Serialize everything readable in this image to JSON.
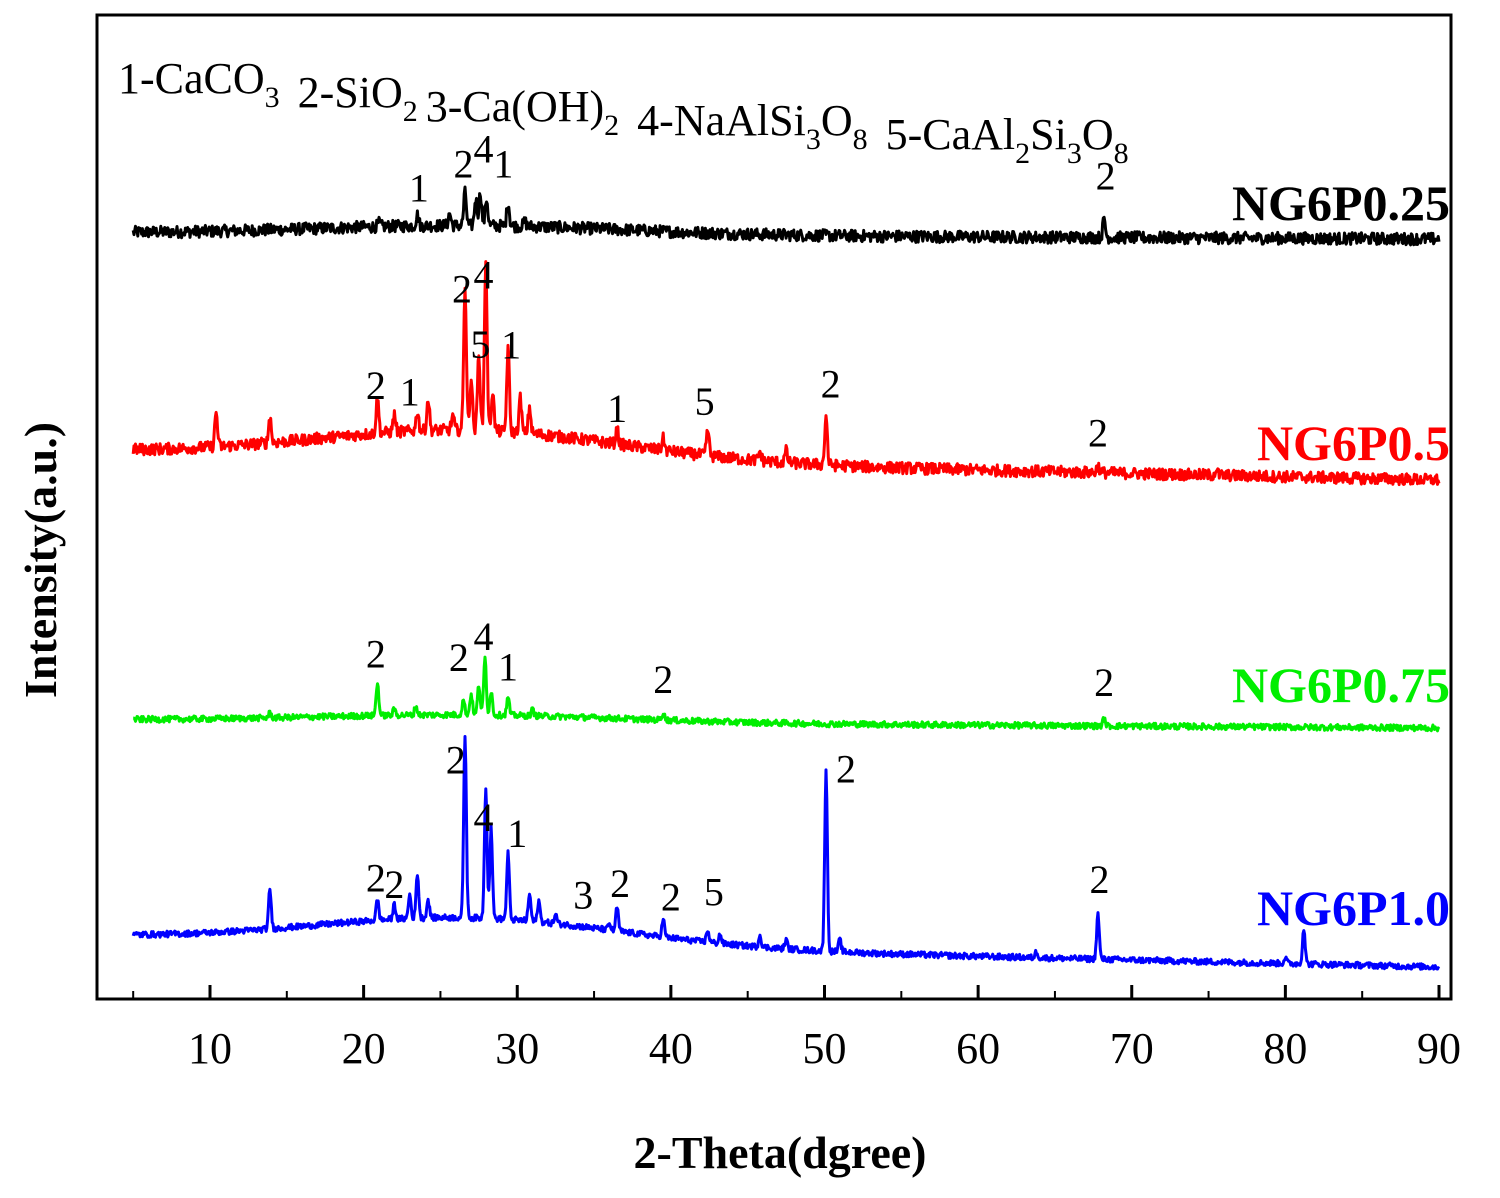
{
  "chart_data": {
    "type": "line",
    "title": "",
    "xlabel": "2-Theta(dgree)",
    "ylabel": "Intensity(a.u.)",
    "xlim": [
      5,
      90
    ],
    "x_ticks": [
      10,
      20,
      30,
      40,
      50,
      60,
      70,
      80,
      90
    ],
    "y_ticks_shown": false,
    "grid": false,
    "legend_items": [
      {
        "text": "1-CaCO",
        "sub": "3"
      },
      {
        "text": "2-SiO",
        "sub": "2"
      },
      {
        "text": "3-Ca(OH)",
        "sub": "2"
      },
      {
        "text": "4-NaAlSi",
        "sub": "3",
        "text2": "O",
        "sub2": "8"
      },
      {
        "text": "5-CaAl",
        "sub": "2",
        "text2": "Si",
        "sub2": "3",
        "text3": "O",
        "sub3": "8"
      }
    ],
    "series": [
      {
        "name": "NG6P0.25",
        "color": "#000000",
        "baseline": [
          0.15,
          0.1
        ],
        "peaks": [
          [
            21.0,
            0.06
          ],
          [
            23.5,
            0.18
          ],
          [
            25.6,
            0.2
          ],
          [
            26.6,
            0.55
          ],
          [
            27.3,
            0.45
          ],
          [
            27.6,
            0.55
          ],
          [
            28.0,
            0.45
          ],
          [
            29.4,
            0.4
          ],
          [
            30.5,
            0.08
          ],
          [
            68.2,
            0.3
          ]
        ],
        "labels": [
          {
            "text": "1",
            "x": 23.6,
            "y": 0.55
          },
          {
            "text": "2",
            "x": 26.5,
            "y": 0.95
          },
          {
            "text": "4",
            "x": 27.8,
            "y": 1.2
          },
          {
            "text": "1",
            "x": 29.1,
            "y": 0.95
          },
          {
            "text": "2",
            "x": 68.3,
            "y": 0.8
          }
        ]
      },
      {
        "name": "NG6P0.5",
        "color": "#ff0000",
        "baseline": [
          0.5,
          0.1
        ],
        "peaks": [
          [
            10.4,
            0.6
          ],
          [
            13.9,
            0.45
          ],
          [
            20.9,
            0.6
          ],
          [
            22.0,
            0.3
          ],
          [
            23.5,
            0.35
          ],
          [
            24.2,
            0.55
          ],
          [
            25.8,
            0.25
          ],
          [
            26.6,
            2.5
          ],
          [
            27.0,
            0.9
          ],
          [
            27.5,
            1.35
          ],
          [
            27.95,
            2.95
          ],
          [
            28.4,
            0.7
          ],
          [
            29.4,
            1.45
          ],
          [
            30.2,
            0.6
          ],
          [
            30.8,
            0.45
          ],
          [
            36.5,
            0.25
          ],
          [
            39.5,
            0.2
          ],
          [
            42.4,
            0.45
          ],
          [
            45.8,
            0.15
          ],
          [
            47.5,
            0.2
          ],
          [
            50.1,
            0.85
          ],
          [
            67.8,
            0.12
          ],
          [
            75.5,
            0.1
          ]
        ],
        "labels": [
          {
            "text": "2",
            "x": 20.8,
            "y": 1.0
          },
          {
            "text": "1",
            "x": 23.0,
            "y": 0.9
          },
          {
            "text": "2",
            "x": 26.4,
            "y": 2.7
          },
          {
            "text": "4",
            "x": 27.8,
            "y": 2.95
          },
          {
            "text": "5",
            "x": 27.6,
            "y": 1.75
          },
          {
            "text": "1",
            "x": 29.6,
            "y": 1.75
          },
          {
            "text": "1",
            "x": 36.5,
            "y": 0.7
          },
          {
            "text": "5",
            "x": 42.2,
            "y": 0.85
          },
          {
            "text": "2",
            "x": 50.4,
            "y": 1.2
          },
          {
            "text": "2",
            "x": 67.8,
            "y": 0.45
          }
        ]
      },
      {
        "name": "NG6P0.75",
        "color": "#00ee00",
        "baseline": [
          0.12,
          0.05
        ],
        "peaks": [
          [
            13.9,
            0.08
          ],
          [
            20.9,
            0.55
          ],
          [
            22.0,
            0.1
          ],
          [
            23.4,
            0.15
          ],
          [
            26.5,
            0.25
          ],
          [
            27.0,
            0.35
          ],
          [
            27.5,
            0.5
          ],
          [
            27.9,
            0.95
          ],
          [
            28.3,
            0.4
          ],
          [
            29.4,
            0.3
          ],
          [
            31.0,
            0.1
          ],
          [
            39.5,
            0.12
          ],
          [
            68.2,
            0.12
          ]
        ],
        "labels": [
          {
            "text": "2",
            "x": 20.8,
            "y": 0.9
          },
          {
            "text": "2",
            "x": 26.2,
            "y": 0.85
          },
          {
            "text": "4",
            "x": 27.8,
            "y": 1.2
          },
          {
            "text": "1",
            "x": 29.4,
            "y": 0.7
          },
          {
            "text": "2",
            "x": 39.5,
            "y": 0.5
          },
          {
            "text": "2",
            "x": 68.2,
            "y": 0.5
          }
        ]
      },
      {
        "name": "NG6P1.0",
        "color": "#0000ff",
        "baseline": [
          0.45,
          0.05
        ],
        "peaks": [
          [
            13.9,
            0.65
          ],
          [
            20.9,
            0.35
          ],
          [
            22.0,
            0.25
          ],
          [
            23.0,
            0.4
          ],
          [
            23.5,
            0.75
          ],
          [
            24.2,
            0.3
          ],
          [
            26.6,
            3.05
          ],
          [
            27.95,
            2.2
          ],
          [
            28.3,
            1.5
          ],
          [
            29.4,
            1.1
          ],
          [
            30.8,
            0.45
          ],
          [
            31.4,
            0.35
          ],
          [
            32.5,
            0.15
          ],
          [
            36.0,
            0.1
          ],
          [
            36.5,
            0.4
          ],
          [
            39.5,
            0.3
          ],
          [
            42.4,
            0.2
          ],
          [
            43.2,
            0.15
          ],
          [
            45.8,
            0.2
          ],
          [
            47.5,
            0.15
          ],
          [
            50.1,
            3.05
          ],
          [
            51.0,
            0.2
          ],
          [
            63.8,
            0.1
          ],
          [
            67.8,
            0.75
          ],
          [
            80.0,
            0.1
          ],
          [
            81.2,
            0.6
          ]
        ],
        "labels": [
          {
            "text": "2",
            "x": 26.0,
            "y": 2.85
          },
          {
            "text": "2",
            "x": 51.4,
            "y": 2.85
          },
          {
            "text": "4",
            "x": 27.8,
            "y": 1.9
          },
          {
            "text": "1",
            "x": 30.0,
            "y": 1.65
          },
          {
            "text": "2",
            "x": 20.8,
            "y": 0.85
          },
          {
            "text": "2",
            "x": 22.0,
            "y": 0.75
          },
          {
            "text": "3",
            "x": 34.3,
            "y": 0.65
          },
          {
            "text": "2",
            "x": 36.7,
            "y": 0.85
          },
          {
            "text": "2",
            "x": 40.0,
            "y": 0.65
          },
          {
            "text": "5",
            "x": 42.8,
            "y": 0.75
          },
          {
            "text": "2",
            "x": 67.9,
            "y": 1.1
          }
        ]
      }
    ]
  }
}
